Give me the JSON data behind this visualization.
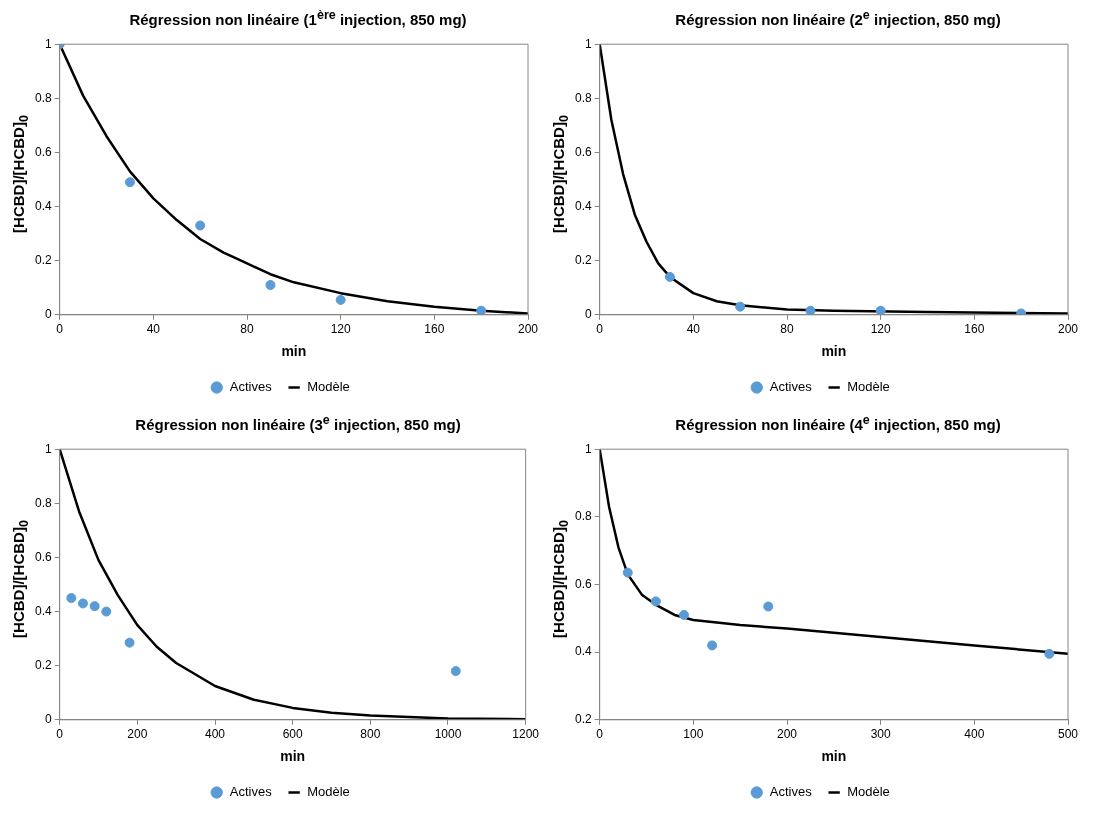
{
  "chart_data": [
    {
      "type": "scatter",
      "title": "Régression non linéaire (1$^{ère}$ injection, 850 mg)",
      "xlabel": "min",
      "ylabel": "[HCBD]/[HCBD]$_{0}$",
      "xlim": [
        0,
        200
      ],
      "xticks": [
        0,
        40,
        80,
        120,
        160,
        200
      ],
      "ylim": [
        0,
        1
      ],
      "yticks": [
        0,
        0.2,
        0.4,
        0.6,
        0.8,
        1
      ],
      "grid": false,
      "legend": "bottom",
      "series": [
        {
          "name": "Actives",
          "color": "#5b9bd5",
          "marker": "circle",
          "x": [
            0,
            30,
            60,
            90,
            120,
            180
          ],
          "values": [
            1,
            0.49,
            0.33,
            0.11,
            0.055,
            0.015
          ]
        },
        {
          "name": "Modèle",
          "type": "line",
          "color": "#000000",
          "marker": "none",
          "x": [
            0,
            10,
            20,
            30,
            40,
            50,
            60,
            70,
            80,
            90,
            100,
            120,
            140,
            160,
            180,
            200
          ],
          "values": [
            1,
            0.81,
            0.66,
            0.53,
            0.43,
            0.35,
            0.28,
            0.23,
            0.19,
            0.15,
            0.12,
            0.08,
            0.05,
            0.03,
            0.015,
            0.005
          ]
        }
      ]
    },
    {
      "type": "scatter",
      "title": "Régression non linéaire (2$^{e}$ injection, 850 mg)",
      "xlabel": "min",
      "ylabel": "[HCBD]/[HCBD]$_{0}$",
      "xlim": [
        0,
        200
      ],
      "xticks": [
        0,
        40,
        80,
        120,
        160,
        200
      ],
      "ylim": [
        0,
        1
      ],
      "yticks": [
        0,
        0.2,
        0.4,
        0.6,
        0.8,
        1
      ],
      "grid": false,
      "legend": "bottom",
      "series": [
        {
          "name": "Actives",
          "color": "#5b9bd5",
          "marker": "circle",
          "x": [
            30,
            60,
            90,
            120,
            180
          ],
          "values": [
            0.14,
            0.03,
            0.015,
            0.015,
            0.005
          ]
        },
        {
          "name": "Modèle",
          "type": "line",
          "color": "#000000",
          "marker": "none",
          "x": [
            0,
            5,
            10,
            15,
            20,
            25,
            30,
            40,
            50,
            60,
            80,
            100,
            140,
            200
          ],
          "values": [
            1,
            0.72,
            0.52,
            0.37,
            0.27,
            0.19,
            0.14,
            0.08,
            0.05,
            0.035,
            0.02,
            0.015,
            0.01,
            0.005
          ]
        }
      ]
    },
    {
      "type": "scatter",
      "title": "Régression non linéaire (3$^{e}$ injection, 850 mg)",
      "xlabel": "min",
      "ylabel": "[HCBD]/[HCBD]$_{0}$",
      "xlim": [
        0,
        1200
      ],
      "xticks": [
        0,
        200,
        400,
        600,
        800,
        1000,
        1200
      ],
      "ylim": [
        0,
        1
      ],
      "yticks": [
        0,
        0.2,
        0.4,
        0.6,
        0.8,
        1
      ],
      "grid": false,
      "legend": "bottom",
      "series": [
        {
          "name": "Actives",
          "color": "#5b9bd5",
          "marker": "circle",
          "x": [
            30,
            60,
            90,
            120,
            180,
            1020
          ],
          "values": [
            0.45,
            0.43,
            0.42,
            0.4,
            0.285,
            0.18
          ]
        },
        {
          "name": "Modèle",
          "type": "line",
          "color": "#000000",
          "marker": "none",
          "x": [
            0,
            50,
            100,
            150,
            200,
            250,
            300,
            400,
            500,
            600,
            700,
            800,
            1000,
            1200
          ],
          "values": [
            1,
            0.77,
            0.59,
            0.46,
            0.35,
            0.27,
            0.21,
            0.125,
            0.074,
            0.044,
            0.026,
            0.016,
            0.005,
            0.002
          ]
        }
      ]
    },
    {
      "type": "scatter",
      "title": "Régression non linéaire (4$^{e}$ injection, 850 mg)",
      "xlabel": "min",
      "ylabel": "[HCBD]/[HCBD]$_{0}$",
      "xlim": [
        0,
        500
      ],
      "xticks": [
        0,
        100,
        200,
        300,
        400,
        500
      ],
      "ylim": [
        0.2,
        1
      ],
      "yticks": [
        0.2,
        0.4,
        0.6,
        0.8,
        1
      ],
      "grid": false,
      "legend": "bottom",
      "series": [
        {
          "name": "Actives",
          "color": "#5b9bd5",
          "marker": "circle",
          "x": [
            30,
            60,
            90,
            120,
            180,
            480
          ],
          "values": [
            0.635,
            0.55,
            0.51,
            0.42,
            0.535,
            0.395
          ]
        },
        {
          "name": "Modèle",
          "type": "line",
          "color": "#000000",
          "marker": "none",
          "x": [
            0,
            10,
            20,
            30,
            45,
            60,
            80,
            100,
            150,
            200,
            300,
            400,
            500
          ],
          "values": [
            1,
            0.83,
            0.71,
            0.63,
            0.57,
            0.54,
            0.51,
            0.495,
            0.48,
            0.47,
            0.445,
            0.42,
            0.395
          ]
        }
      ]
    }
  ]
}
